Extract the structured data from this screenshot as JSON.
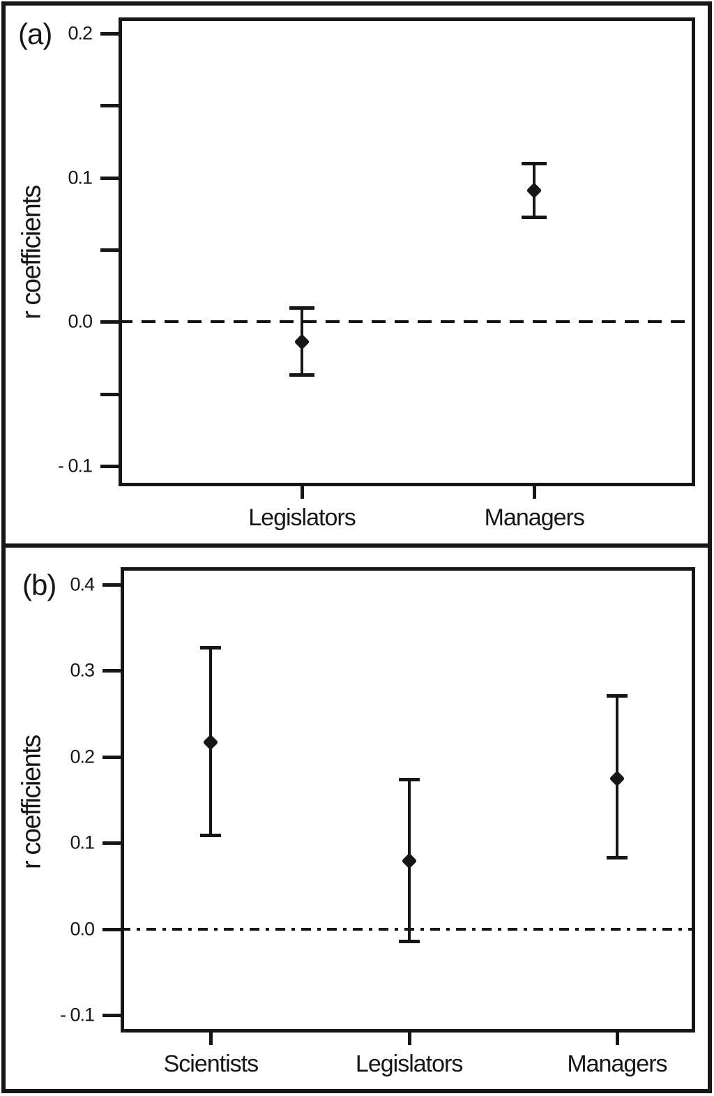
{
  "colors": {
    "ink": "#161616",
    "background": "#ffffff"
  },
  "chart_data": [
    {
      "type": "errorbar",
      "panel_label": "(a)",
      "ylabel": "r coefficients",
      "xlabel": "",
      "ylim": [
        -0.114,
        0.211
      ],
      "grid": false,
      "zero_line_value": 0.0,
      "zero_line_style": "dashed",
      "yticks": [
        {
          "value": 0.2,
          "label": "0.2"
        },
        {
          "value": 0.15,
          "label": ""
        },
        {
          "value": 0.1,
          "label": "0.1"
        },
        {
          "value": 0.05,
          "label": ""
        },
        {
          "value": 0.0,
          "label": "0.0"
        },
        {
          "value": -0.05,
          "label": ""
        },
        {
          "value": -0.1,
          "label": "- 0.1"
        }
      ],
      "categories": [
        "Legislators",
        "Managers"
      ],
      "points": [
        {
          "category": "Legislators",
          "x_frac": 0.318,
          "mean": -0.014,
          "ci_low": -0.037,
          "ci_high": 0.01
        },
        {
          "category": "Managers",
          "x_frac": 0.721,
          "mean": 0.091,
          "ci_low": 0.072,
          "ci_high": 0.11
        }
      ]
    },
    {
      "type": "errorbar",
      "panel_label": "(b)",
      "ylabel": "r coefficients",
      "xlabel": "",
      "ylim": [
        -0.12,
        0.42
      ],
      "grid": false,
      "zero_line_value": 0.0,
      "zero_line_style": "dash-dot",
      "yticks": [
        {
          "value": 0.4,
          "label": "0.4"
        },
        {
          "value": 0.3,
          "label": "0.3"
        },
        {
          "value": 0.2,
          "label": "0.2"
        },
        {
          "value": 0.1,
          "label": "0.1"
        },
        {
          "value": 0.0,
          "label": "0.0"
        },
        {
          "value": -0.1,
          "label": "- 0.1"
        }
      ],
      "categories": [
        "Scientists",
        "Legislators",
        "Managers"
      ],
      "points": [
        {
          "category": "Scientists",
          "x_frac": 0.157,
          "mean": 0.217,
          "ci_low": 0.108,
          "ci_high": 0.327
        },
        {
          "category": "Legislators",
          "x_frac": 0.502,
          "mean": 0.079,
          "ci_low": -0.015,
          "ci_high": 0.174
        },
        {
          "category": "Managers",
          "x_frac": 0.864,
          "mean": 0.175,
          "ci_low": 0.082,
          "ci_high": 0.271
        }
      ]
    }
  ]
}
